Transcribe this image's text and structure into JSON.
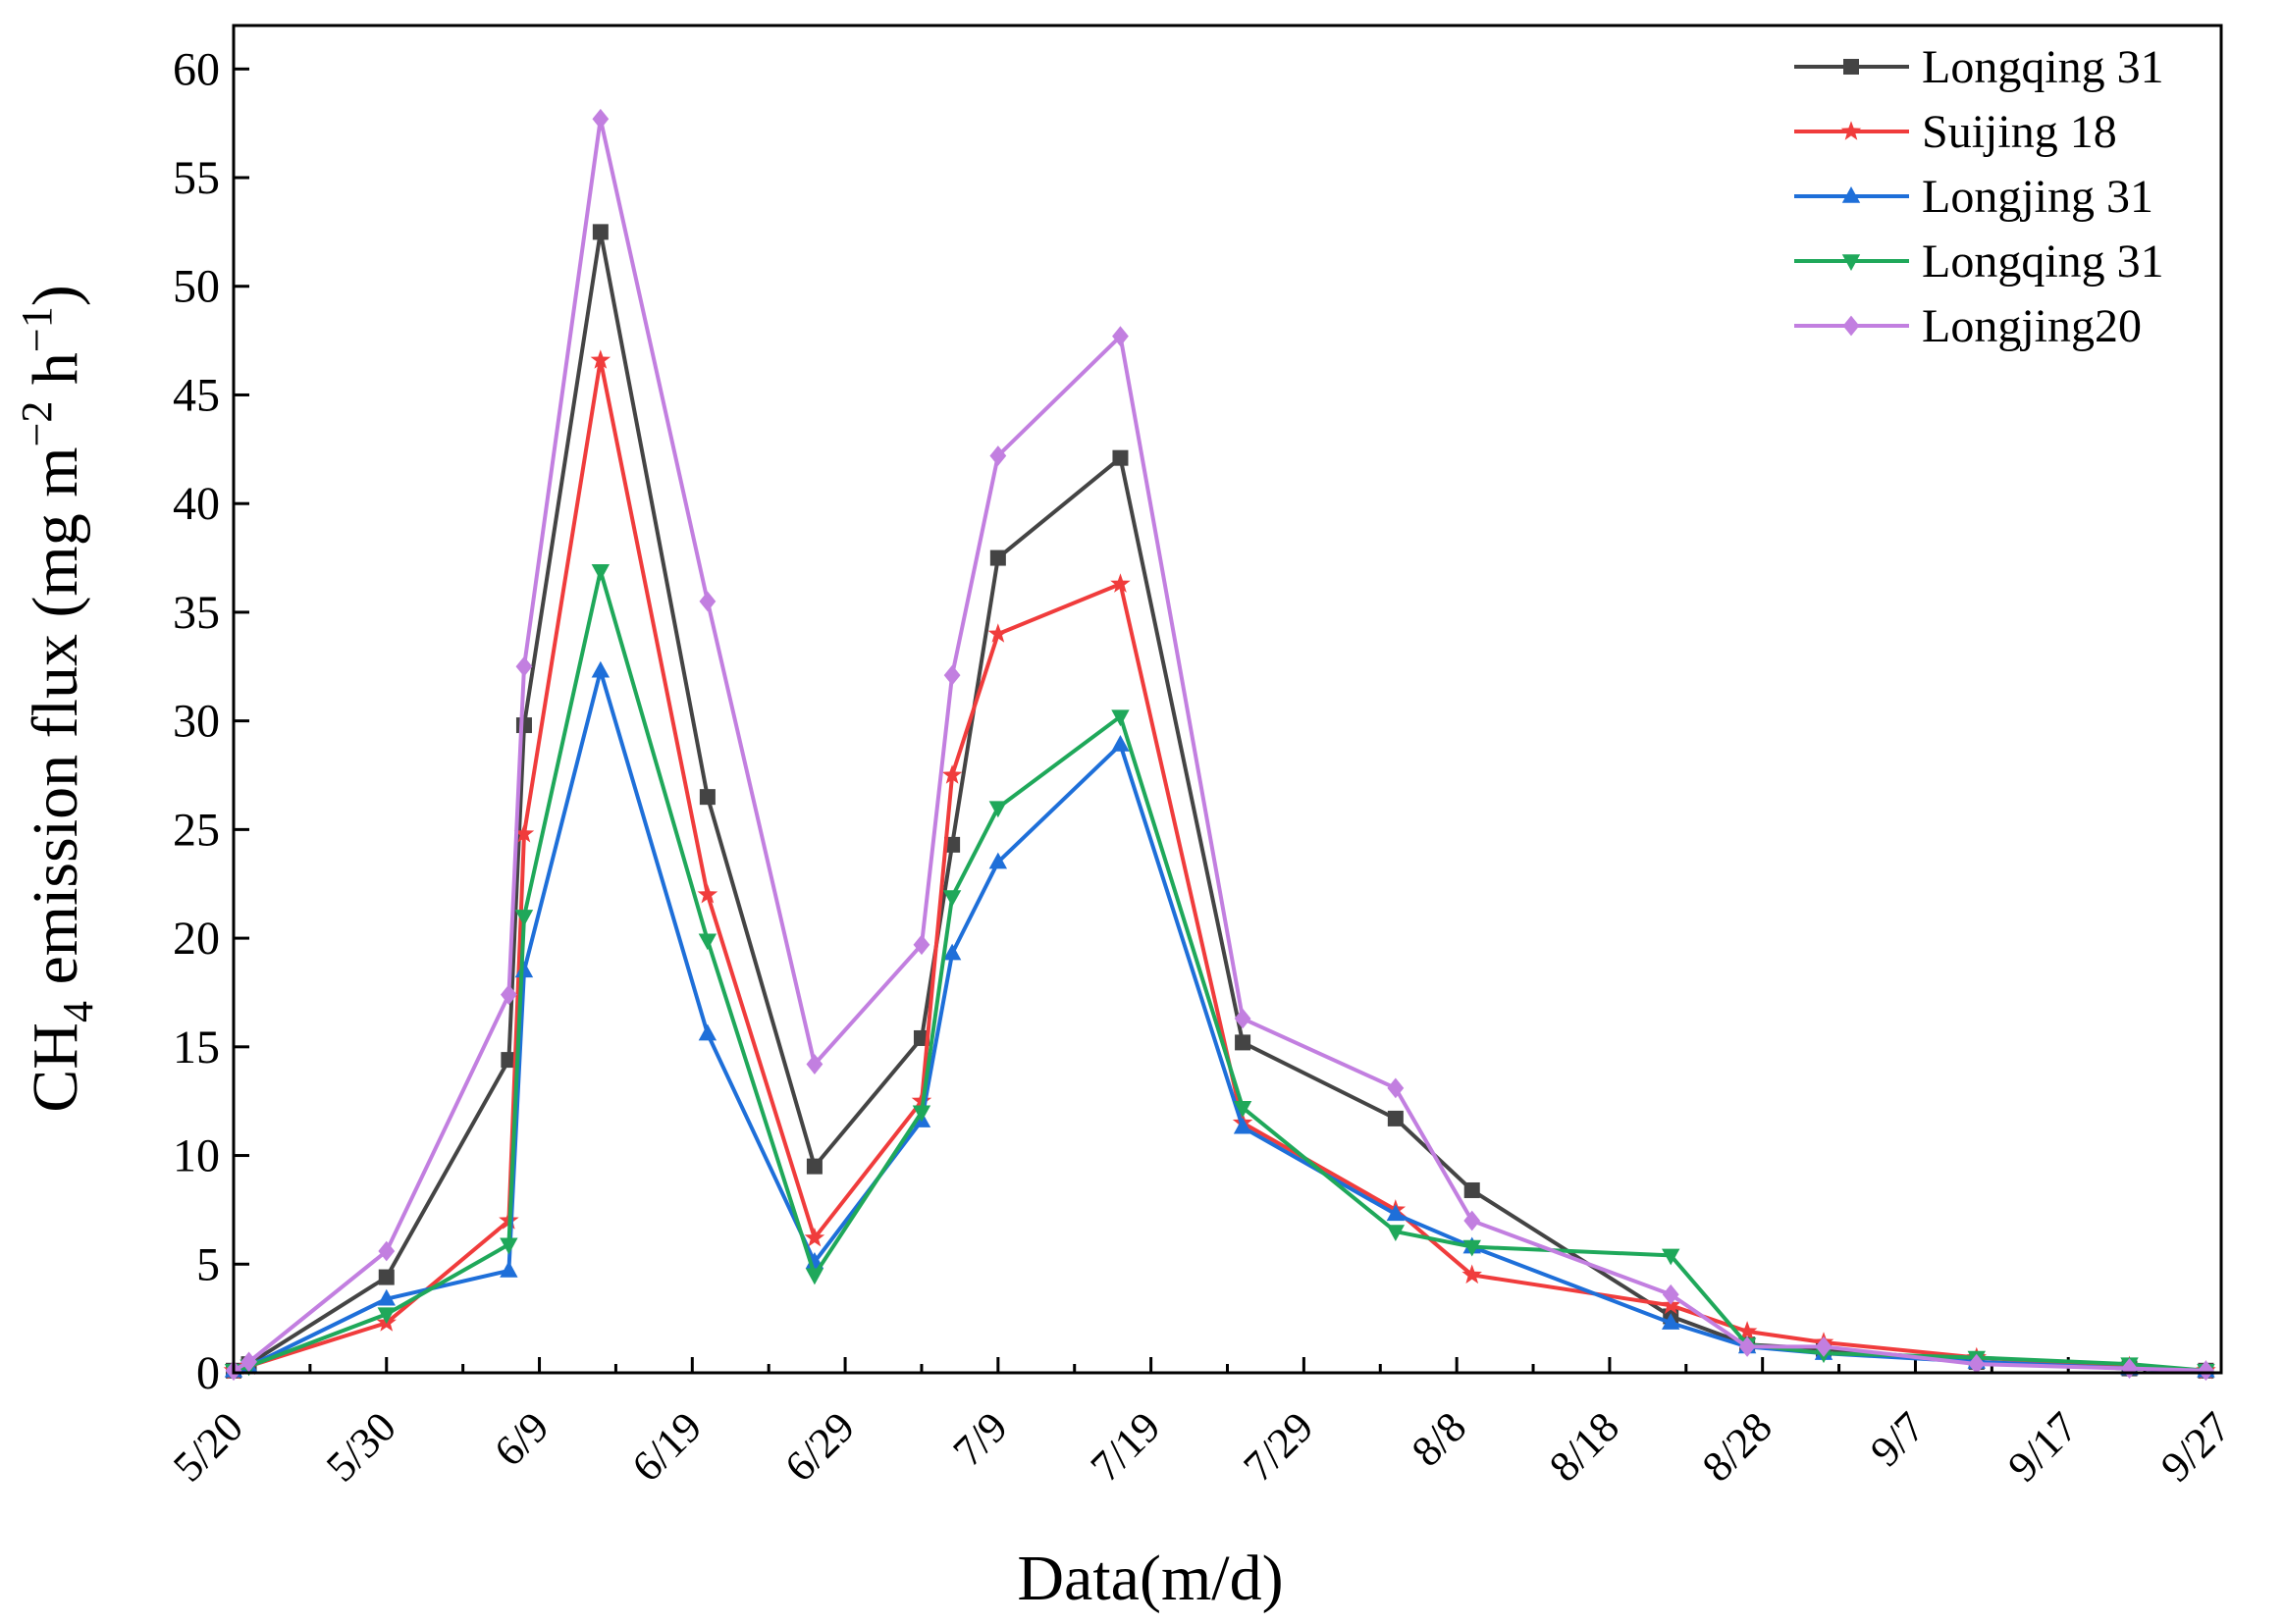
{
  "chart_data": {
    "type": "line",
    "title": "",
    "xlabel": "Data(m/d)",
    "ylabel_prefix": "CH",
    "ylabel_sub": "4",
    "ylabel_main": " emission flux (mg m",
    "ylabel_sup1": "−2",
    "ylabel_mid": " h",
    "ylabel_sup2": "−1",
    "ylabel_suffix": ")",
    "xlim": [
      0,
      130
    ],
    "ylim": [
      0,
      62
    ],
    "x_tick_values": [
      0,
      10,
      20,
      30,
      40,
      50,
      60,
      70,
      80,
      90,
      100,
      110,
      120,
      130
    ],
    "x_tick_labels": [
      "5/20",
      "5/30",
      "6/9",
      "6/19",
      "6/29",
      "7/9",
      "7/19",
      "7/29",
      "8/8",
      "8/18",
      "8/28",
      "9/7",
      "9/17",
      "9/27"
    ],
    "y_ticks": [
      0,
      5,
      10,
      15,
      20,
      25,
      30,
      35,
      40,
      45,
      50,
      55,
      60
    ],
    "legend_position": "top-right",
    "series": [
      {
        "name": "Longqing 31",
        "color": "#444444",
        "marker": "square",
        "x": [
          0,
          1,
          10,
          18,
          19,
          24,
          31,
          38,
          45,
          47,
          50,
          58,
          66,
          76,
          81,
          94,
          99,
          104,
          114,
          124,
          129
        ],
        "y": [
          0.1,
          0.4,
          4.4,
          14.4,
          29.8,
          52.5,
          26.5,
          9.5,
          15.4,
          24.3,
          37.5,
          42.1,
          15.2,
          11.7,
          8.4,
          2.6,
          1.3,
          1.1,
          0.5,
          0.2,
          0.1
        ]
      },
      {
        "name": "Suijing 18",
        "color": "#f03c3c",
        "marker": "star",
        "x": [
          0,
          1,
          10,
          18,
          19,
          24,
          31,
          38,
          45,
          47,
          50,
          58,
          66,
          76,
          81,
          94,
          99,
          104,
          114,
          124,
          129
        ],
        "y": [
          0.1,
          0.3,
          2.3,
          7.0,
          24.8,
          46.6,
          22.0,
          6.2,
          12.5,
          27.5,
          34.0,
          36.3,
          11.5,
          7.5,
          4.5,
          3.1,
          1.9,
          1.4,
          0.7,
          0.3,
          0.1
        ]
      },
      {
        "name": "Longjing 31",
        "color": "#1e6fd9",
        "marker": "triangle-up",
        "x": [
          0,
          1,
          10,
          18,
          19,
          24,
          31,
          38,
          45,
          47,
          50,
          58,
          66,
          76,
          81,
          94,
          99,
          104,
          114,
          124,
          129
        ],
        "y": [
          0.1,
          0.3,
          3.4,
          4.7,
          18.5,
          32.3,
          15.6,
          5.1,
          11.6,
          19.3,
          23.5,
          28.9,
          11.3,
          7.3,
          5.8,
          2.3,
          1.2,
          0.9,
          0.5,
          0.2,
          0.1
        ]
      },
      {
        "name": "Longqing 31",
        "color": "#1fa85a",
        "marker": "triangle-down",
        "x": [
          0,
          1,
          10,
          18,
          19,
          24,
          31,
          38,
          45,
          47,
          50,
          58,
          66,
          76,
          81,
          94,
          99,
          104,
          114,
          124,
          129
        ],
        "y": [
          0.1,
          0.3,
          2.7,
          5.9,
          21.0,
          36.9,
          19.9,
          4.5,
          12.0,
          21.9,
          26.0,
          30.2,
          12.2,
          6.5,
          5.8,
          5.4,
          1.3,
          0.9,
          0.7,
          0.4,
          0.1
        ]
      },
      {
        "name": "Longjing20",
        "color": "#c27fe0",
        "marker": "diamond",
        "x": [
          0,
          1,
          10,
          18,
          19,
          24,
          31,
          38,
          45,
          47,
          50,
          58,
          66,
          76,
          81,
          94,
          99,
          104,
          114,
          124,
          129
        ],
        "y": [
          0.1,
          0.5,
          5.6,
          17.4,
          32.5,
          57.7,
          35.5,
          14.2,
          19.7,
          32.1,
          42.2,
          47.7,
          16.3,
          13.1,
          7.0,
          3.6,
          1.2,
          1.2,
          0.4,
          0.2,
          0.1
        ]
      }
    ]
  }
}
